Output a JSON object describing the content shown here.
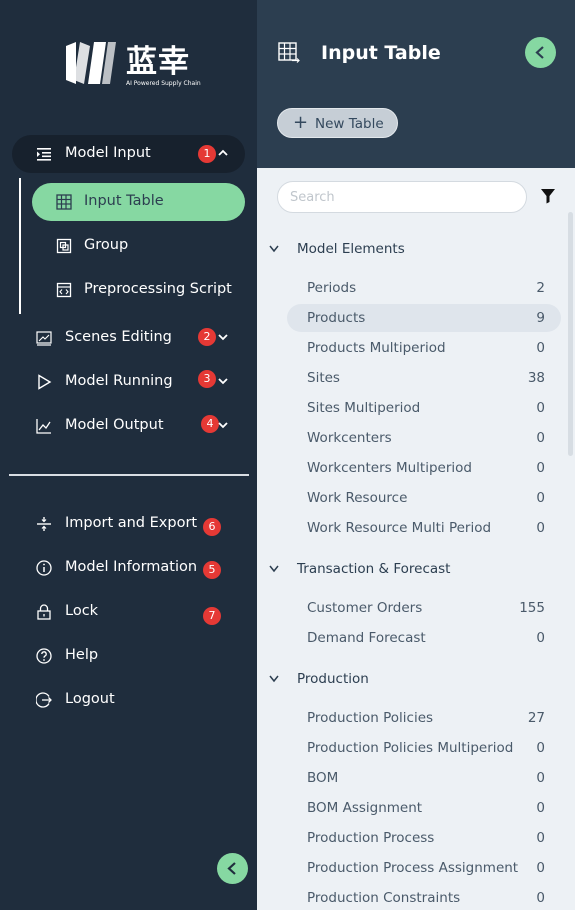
{
  "brand": {
    "name": "蓝幸",
    "tagline": "AI Powered Supply Chain"
  },
  "nav": {
    "model_input": {
      "label": "Model Input",
      "badge": "1"
    },
    "sub_items": [
      {
        "label": "Input Table",
        "icon": "table-icon",
        "active": true
      },
      {
        "label": "Group",
        "icon": "group-icon"
      },
      {
        "label": "Preprocessing Script",
        "icon": "script-icon"
      }
    ],
    "scenes_editing": {
      "label": "Scenes Editing",
      "badge": "2"
    },
    "model_running": {
      "label": "Model Running",
      "badge": "3"
    },
    "model_output": {
      "label": "Model Output",
      "badge": "4"
    },
    "import_export": {
      "label": "Import and Export",
      "badge": "6"
    },
    "model_information": {
      "label": "Model Information",
      "badge": "5"
    },
    "lock": {
      "label": "Lock",
      "badge": "7"
    },
    "help": {
      "label": "Help"
    },
    "logout": {
      "label": "Logout"
    }
  },
  "panel": {
    "title": "Input Table",
    "new_table_label": "New Table",
    "search_placeholder": "Search",
    "groups": [
      {
        "label": "Model Elements",
        "rows": [
          {
            "label": "Periods",
            "count": "2"
          },
          {
            "label": "Products",
            "count": "9",
            "selected": true
          },
          {
            "label": "Products Multiperiod",
            "count": "0"
          },
          {
            "label": "Sites",
            "count": "38"
          },
          {
            "label": "Sites Multiperiod",
            "count": "0"
          },
          {
            "label": "Workcenters",
            "count": "0"
          },
          {
            "label": "Workcenters Multiperiod",
            "count": "0"
          },
          {
            "label": "Work Resource",
            "count": "0"
          },
          {
            "label": "Work Resource Multi Period",
            "count": "0"
          }
        ]
      },
      {
        "label": "Transaction & Forecast",
        "rows": [
          {
            "label": "Customer Orders",
            "count": "155"
          },
          {
            "label": "Demand Forecast",
            "count": "0"
          }
        ]
      },
      {
        "label": "Production",
        "rows": [
          {
            "label": "Production Policies",
            "count": "27"
          },
          {
            "label": "Production Policies Multiperiod",
            "count": "0"
          },
          {
            "label": "BOM",
            "count": "0"
          },
          {
            "label": "BOM Assignment",
            "count": "0"
          },
          {
            "label": "Production Process",
            "count": "0"
          },
          {
            "label": "Production Process Assignment",
            "count": "0"
          },
          {
            "label": "Production Constraints",
            "count": "0"
          }
        ]
      }
    ]
  },
  "colors": {
    "nav_bg": "#1f2d3d",
    "header_bg": "#2c3e50",
    "accent": "#86d8a2",
    "badge": "#e53935"
  }
}
